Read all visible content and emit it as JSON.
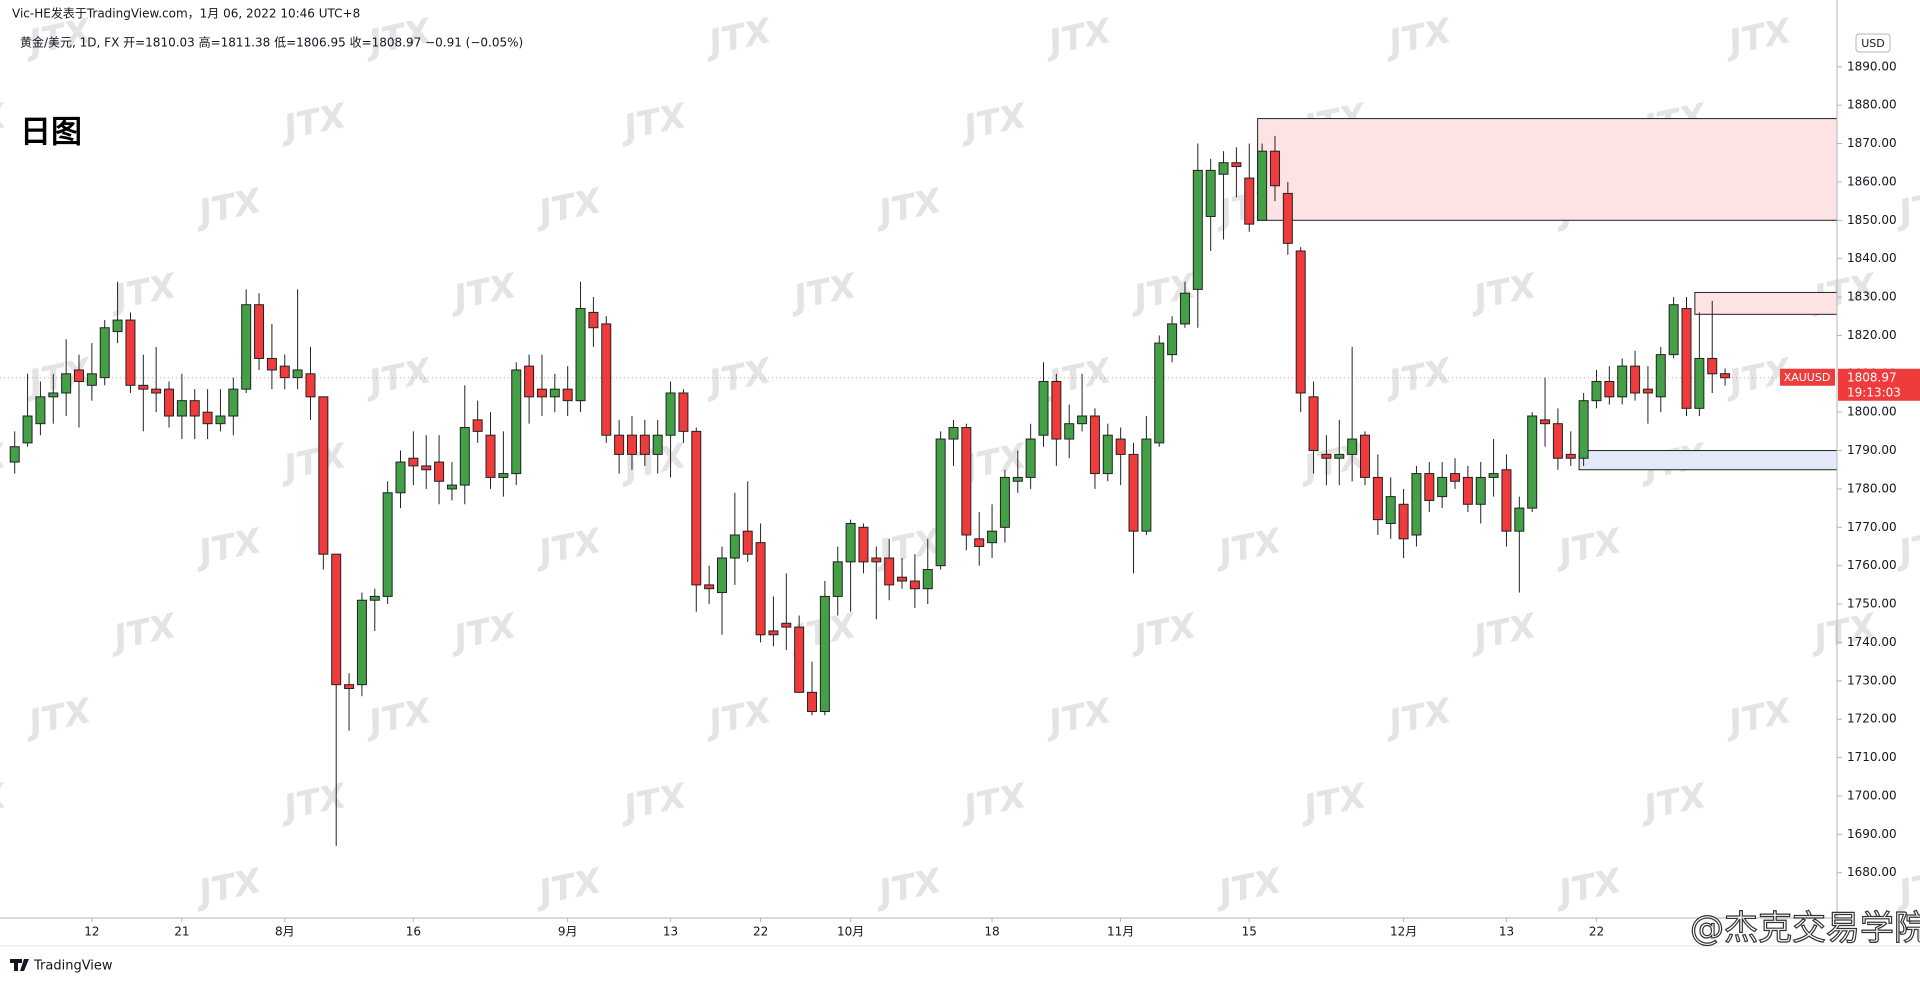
{
  "header": {
    "author_line": "Vic-HE发表于TradingView.com，1月 06, 2022 10:46 UTC+8",
    "legend": "黄金/美元, 1D, FX  开=1810.03  高=1811.38  低=1806.95  收=1808.97  −0.91 (−0.05%)",
    "label": "日图"
  },
  "footer": {
    "brand": "TradingView",
    "weibo": "@杰克交易学院"
  },
  "watermark": "JTX",
  "chart_data": {
    "type": "candlestick",
    "currency": "USD",
    "up_color": "#43a047",
    "down_color": "#ef3b3b",
    "categories": [
      null,
      null,
      null,
      null,
      null,
      null,
      "12",
      null,
      null,
      null,
      null,
      null,
      null,
      "21",
      null,
      null,
      null,
      null,
      null,
      null,
      null,
      "8月",
      null,
      null,
      null,
      null,
      null,
      null,
      null,
      null,
      null,
      "16",
      null,
      null,
      null,
      null,
      null,
      null,
      null,
      null,
      null,
      null,
      null,
      "9月",
      null,
      null,
      null,
      null,
      null,
      null,
      null,
      "13",
      null,
      null,
      null,
      null,
      null,
      null,
      "22",
      null,
      null,
      null,
      null,
      null,
      null,
      "10月",
      null,
      null,
      null,
      null,
      null,
      null,
      null,
      null,
      null,
      null,
      "18",
      null,
      null,
      null,
      null,
      null,
      null,
      null,
      null,
      null,
      "11月",
      null,
      null,
      null,
      null,
      null,
      null,
      null,
      null,
      null,
      "15",
      null,
      null,
      null,
      null,
      null,
      null,
      null,
      null,
      null,
      null,
      null,
      "12月",
      null,
      null,
      null,
      null,
      null,
      null,
      null,
      "13",
      null,
      null,
      null,
      null,
      null,
      null,
      "22",
      null,
      null,
      null,
      null,
      null,
      null,
      null,
      null,
      null,
      null
    ],
    "open": [
      1787,
      1792,
      1797,
      1804,
      1805,
      1811,
      1807,
      1809,
      1821,
      1824,
      1807,
      1806,
      1806,
      1799,
      1803,
      1800,
      1797,
      1799,
      1806,
      1828,
      1814,
      1812,
      1809,
      1810,
      1804,
      1763,
      1729,
      1729,
      1751,
      1752,
      1779,
      1788,
      1786,
      1787,
      1780,
      1781,
      1798,
      1794,
      1783,
      1784,
      1812,
      1806,
      1804,
      1806,
      1803,
      1826,
      1823,
      1794,
      1794,
      1794,
      1789,
      1794,
      1805,
      1795,
      1755,
      1753,
      1762,
      1769,
      1766,
      1743,
      1745,
      1744,
      1727,
      1722,
      1752,
      1761,
      1770,
      1762,
      1762,
      1757,
      1756,
      1754,
      1760,
      1793,
      1796,
      1767,
      1766,
      1770,
      1782,
      1783,
      1794,
      1808,
      1793,
      1797,
      1799,
      1784,
      1793,
      1789,
      1769,
      1792,
      1815,
      1823,
      1832,
      1851,
      1862,
      1865,
      1861,
      1850,
      1868,
      1857,
      1842,
      1804,
      1789,
      1788,
      1789,
      1794,
      1783,
      1771,
      1776,
      1768,
      1784,
      1778,
      1784,
      1783,
      1776,
      1783,
      1785,
      1769,
      1775,
      1798,
      1797,
      1789,
      1788,
      1803,
      1808,
      1804,
      1812,
      1806,
      1804,
      1815,
      1827,
      1801,
      1814,
      1810.03
    ],
    "high": [
      1795,
      1810,
      1808,
      1810,
      1819,
      1815,
      1818,
      1824,
      1834,
      1826,
      1815,
      1817,
      1808,
      1810,
      1806,
      1806,
      1806,
      1809,
      1832,
      1831,
      1823,
      1815,
      1832,
      1817,
      1804,
      1763,
      1732,
      1753,
      1754,
      1782,
      1790,
      1795,
      1794,
      1794,
      1787,
      1807,
      1803,
      1800,
      1795,
      1813,
      1815,
      1815,
      1810,
      1812,
      1834,
      1830,
      1825,
      1798,
      1799,
      1798,
      1798,
      1808,
      1806,
      1796,
      1760,
      1765,
      1779,
      1782,
      1771,
      1752,
      1758,
      1747,
      1735,
      1756,
      1765,
      1772,
      1771,
      1765,
      1767,
      1762,
      1763,
      1767,
      1795,
      1798,
      1797,
      1774,
      1776,
      1785,
      1790,
      1797,
      1813,
      1810,
      1802,
      1810,
      1801,
      1797,
      1796,
      1792,
      1799,
      1820,
      1825,
      1834,
      1870,
      1866,
      1868,
      1869,
      1870,
      1870,
      1872,
      1860,
      1843,
      1808,
      1794,
      1798,
      1817,
      1795,
      1789,
      1783,
      1780,
      1786,
      1787,
      1787,
      1788,
      1786,
      1787,
      1793,
      1789,
      1778,
      1800,
      1809,
      1801,
      1795,
      1805,
      1811,
      1812,
      1814,
      1816,
      1812,
      1817,
      1830,
      1830,
      1826,
      1829,
      1811.38
    ],
    "low": [
      1784,
      1791,
      1794,
      1797,
      1799,
      1796,
      1803,
      1807,
      1818,
      1805,
      1795,
      1800,
      1796,
      1793,
      1793,
      1793,
      1795,
      1794,
      1805,
      1811,
      1806,
      1806,
      1806,
      1798,
      1759,
      1687,
      1717,
      1726,
      1743,
      1750,
      1775,
      1781,
      1780,
      1776,
      1777,
      1776,
      1792,
      1780,
      1778,
      1781,
      1797,
      1799,
      1800,
      1799,
      1800,
      1817,
      1792,
      1784,
      1785,
      1786,
      1784,
      1783,
      1792,
      1748,
      1750,
      1742,
      1755,
      1761,
      1740,
      1739,
      1738,
      1727,
      1721,
      1721,
      1747,
      1748,
      1758,
      1746,
      1751,
      1754,
      1749,
      1750,
      1759,
      1786,
      1764,
      1760,
      1762,
      1766,
      1779,
      1780,
      1791,
      1786,
      1788,
      1795,
      1780,
      1782,
      1781,
      1758,
      1768,
      1791,
      1813,
      1822,
      1822,
      1842,
      1845,
      1856,
      1847,
      1850,
      1855,
      1841,
      1800,
      1784,
      1781,
      1781,
      1782,
      1781,
      1768,
      1767,
      1762,
      1765,
      1774,
      1775,
      1780,
      1774,
      1771,
      1778,
      1765,
      1753,
      1774,
      1791,
      1785,
      1786,
      1786,
      1801,
      1802,
      1802,
      1803,
      1797,
      1800,
      1814,
      1799,
      1799,
      1805,
      1806.95
    ],
    "close": [
      1791,
      1799,
      1804,
      1805,
      1810,
      1808,
      1810,
      1822,
      1824,
      1807,
      1806,
      1805,
      1799,
      1803,
      1799,
      1797,
      1799,
      1806,
      1828,
      1814,
      1811,
      1809,
      1811,
      1804,
      1763,
      1729,
      1728,
      1751,
      1752,
      1779,
      1787,
      1786,
      1785,
      1782,
      1781,
      1796,
      1795,
      1783,
      1784,
      1811,
      1804,
      1804,
      1806,
      1803,
      1827,
      1822,
      1794,
      1789,
      1789,
      1789,
      1794,
      1805,
      1795,
      1755,
      1754,
      1762,
      1768,
      1763,
      1742,
      1742,
      1744,
      1727,
      1722,
      1752,
      1761,
      1771,
      1761,
      1761,
      1755,
      1756,
      1754,
      1759,
      1793,
      1796,
      1768,
      1765,
      1769,
      1783,
      1783,
      1793,
      1808,
      1793,
      1797,
      1799,
      1784,
      1794,
      1789,
      1769,
      1793,
      1818,
      1823,
      1831,
      1863,
      1863,
      1865,
      1864,
      1849,
      1868,
      1859,
      1844,
      1805,
      1790,
      1788,
      1789,
      1793,
      1783,
      1772,
      1778,
      1767,
      1784,
      1777,
      1783,
      1782,
      1776,
      1783,
      1784,
      1769,
      1775,
      1799,
      1797,
      1788,
      1788,
      1803,
      1808,
      1804,
      1812,
      1805,
      1805,
      1815,
      1828,
      1801,
      1814,
      1810,
      1808.97
    ],
    "zones": [
      {
        "top": 1876.5,
        "bottom": 1850,
        "start": 97,
        "color": "#fde3e4"
      },
      {
        "top": 1831.2,
        "bottom": 1825.5,
        "start": 131,
        "color": "#fde3e4"
      },
      {
        "top": 1790,
        "bottom": 1785,
        "start": 122,
        "color": "#e3e9f9"
      }
    ],
    "last_price": {
      "symbol": "XAUUSD",
      "value": 1808.97,
      "countdown": "19:13:03",
      "color": "#ef3b3b"
    },
    "ylim": [
      1668.2,
      1907.4
    ],
    "yticks": [
      {
        "value": 1680,
        "label": "1680.00"
      },
      {
        "value": 1690,
        "label": "1690.00"
      },
      {
        "value": 1700,
        "label": "1700.00"
      },
      {
        "value": 1710,
        "label": "1710.00"
      },
      {
        "value": 1720,
        "label": "1720.00"
      },
      {
        "value": 1730,
        "label": "1730.00"
      },
      {
        "value": 1740,
        "label": "1740.00"
      },
      {
        "value": 1750,
        "label": "1750.00"
      },
      {
        "value": 1760,
        "label": "1760.00"
      },
      {
        "value": 1770,
        "label": "1770.00"
      },
      {
        "value": 1780,
        "label": "1780.00"
      },
      {
        "value": 1790,
        "label": "1790.00"
      },
      {
        "value": 1800,
        "label": "1800.00"
      },
      {
        "value": 1810,
        "label": "1810.00"
      },
      {
        "value": 1820,
        "label": "1820.00"
      },
      {
        "value": 1830,
        "label": "1830.00"
      },
      {
        "value": 1840,
        "label": "1840.00"
      },
      {
        "value": 1850,
        "label": "1850.00"
      },
      {
        "value": 1860,
        "label": "1860.00"
      },
      {
        "value": 1870,
        "label": "1870.00"
      },
      {
        "value": 1880,
        "label": "1880.00"
      },
      {
        "value": 1890,
        "label": "1890.00"
      }
    ]
  }
}
